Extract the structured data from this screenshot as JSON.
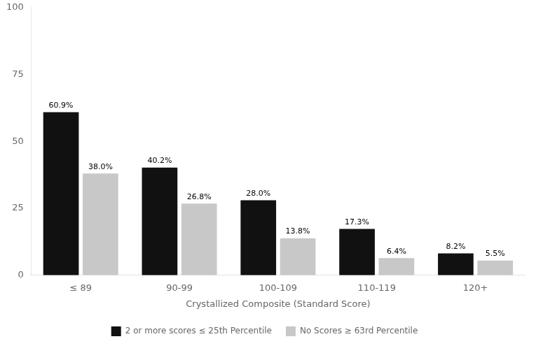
{
  "chart_data": {
    "type": "bar",
    "categories": [
      "≤ 89",
      "90-99",
      "100-109",
      "110-119",
      "120+"
    ],
    "xlabel": "Crystallized Composite (Standard Score)",
    "series": [
      {
        "name": "2 or more scores ≤ 25th Percentile",
        "color": "#111111",
        "values": [
          60.9,
          40.2,
          28.0,
          17.3,
          8.2
        ],
        "value_labels": [
          "60.9%",
          "40.2%",
          "28.0%",
          "17.3%",
          "8.2%"
        ]
      },
      {
        "name": "No Scores ≥ 63rd Percentile",
        "color": "#c8c8c8",
        "values": [
          38.0,
          26.8,
          13.8,
          6.4,
          5.5
        ],
        "value_labels": [
          "38.0%",
          "26.8%",
          "13.8%",
          "6.4%",
          "5.5%"
        ]
      }
    ],
    "ylim": [
      0,
      100
    ],
    "yticks": [
      0,
      25,
      50,
      75,
      100
    ],
    "grid": false,
    "legend": "bottom",
    "data_labels": true
  }
}
